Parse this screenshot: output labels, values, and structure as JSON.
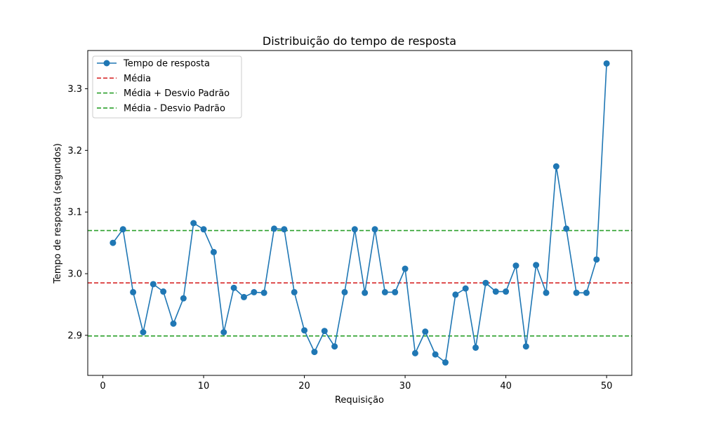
{
  "chart_data": {
    "type": "line",
    "title": "Distribuição do tempo de resposta",
    "xlabel": "Requisição",
    "ylabel": "Tempo de resposta (segundos)",
    "xlim": [
      -1.5,
      52.5
    ],
    "ylim": [
      2.835,
      3.362
    ],
    "x_ticks": [
      0,
      10,
      20,
      30,
      40,
      50
    ],
    "y_ticks": [
      2.9,
      3.0,
      3.1,
      3.2,
      3.3
    ],
    "y_tick_labels": [
      "2.9",
      "3.0",
      "3.1",
      "3.2",
      "3.3"
    ],
    "grid": false,
    "legend_position": "top-left",
    "series": [
      {
        "name": "Tempo de resposta",
        "color": "#1f77b4",
        "marker": "circle",
        "x": [
          1,
          2,
          3,
          4,
          5,
          6,
          7,
          8,
          9,
          10,
          11,
          12,
          13,
          14,
          15,
          16,
          17,
          18,
          19,
          20,
          21,
          22,
          23,
          24,
          25,
          26,
          27,
          28,
          29,
          30,
          31,
          32,
          33,
          34,
          35,
          36,
          37,
          38,
          39,
          40,
          41,
          42,
          43,
          44,
          45,
          46,
          47,
          48,
          49,
          50
        ],
        "values": [
          3.05,
          3.072,
          2.97,
          2.905,
          2.983,
          2.971,
          2.919,
          2.96,
          3.082,
          3.072,
          3.035,
          2.905,
          2.977,
          2.962,
          2.97,
          2.969,
          3.073,
          3.072,
          2.97,
          2.908,
          2.873,
          2.907,
          2.882,
          2.97,
          3.072,
          2.969,
          3.072,
          2.97,
          2.97,
          3.008,
          2.871,
          2.906,
          2.869,
          2.856,
          2.966,
          2.976,
          2.88,
          2.985,
          2.971,
          2.971,
          3.013,
          2.882,
          3.014,
          2.969,
          3.174,
          3.073,
          2.969,
          2.969,
          3.023,
          3.341
        ]
      }
    ],
    "reference_lines": [
      {
        "name": "Média",
        "y": 2.985,
        "color": "#d62728",
        "style": "dashed"
      },
      {
        "name": "Média + Desvio Padrão",
        "y": 3.07,
        "color": "#2ca02c",
        "style": "dashed"
      },
      {
        "name": "Média - Desvio Padrão",
        "y": 2.899,
        "color": "#2ca02c",
        "style": "dashed"
      }
    ],
    "legend": [
      "Tempo de resposta",
      "Média",
      "Média + Desvio Padrão",
      "Média - Desvio Padrão"
    ]
  }
}
